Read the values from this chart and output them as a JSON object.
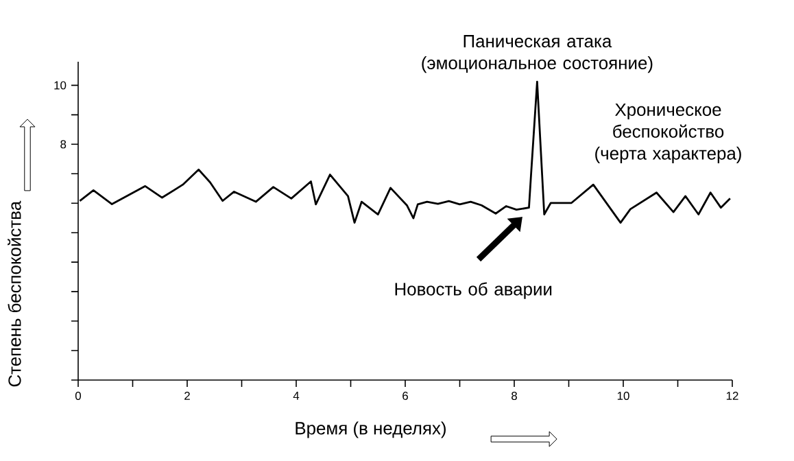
{
  "chart_data": {
    "type": "line",
    "xlabel": "Время (в неделях)",
    "ylabel": "Степень беспокойства",
    "xlim": [
      0,
      12
    ],
    "ylim": [
      0,
      10.8
    ],
    "xticks": [
      0,
      {
        "value": 1,
        "label": null
      },
      2,
      {
        "value": 3,
        "label": null
      },
      4,
      {
        "value": 5,
        "label": null
      },
      6,
      {
        "value": 7,
        "label": null
      },
      8,
      {
        "value": 9,
        "label": null
      },
      10,
      {
        "value": 11,
        "label": null
      },
      12
    ],
    "yticks": [
      {
        "value": 0,
        "label": null
      },
      {
        "value": 1,
        "label": null
      },
      {
        "value": 2,
        "label": null
      },
      {
        "value": 3,
        "label": null
      },
      {
        "value": 4,
        "label": null
      },
      {
        "value": 5,
        "label": null
      },
      {
        "value": 6,
        "label": null
      },
      {
        "value": 7,
        "label": null
      },
      8,
      {
        "value": 9,
        "label": null
      },
      10
    ],
    "annotations": [
      {
        "text": "Паническая атака (эмоциональное состояние)",
        "x": 8.42,
        "y": 10.12
      },
      "Хроническое беспокойство (черта характера)",
      "Новость об аварии"
    ],
    "series": [
      {
        "color": "#000000",
        "x": [
          0.03,
          0.28,
          0.62,
          1.23,
          1.54,
          1.92,
          2.21,
          2.42,
          2.65,
          2.86,
          3.26,
          3.58,
          3.91,
          4.27,
          4.36,
          4.62,
          4.95,
          5.07,
          5.2,
          5.5,
          5.73,
          6.03,
          6.15,
          6.23,
          6.4,
          6.6,
          6.8,
          7.0,
          7.2,
          7.4,
          7.66,
          7.85,
          8.04,
          8.27,
          8.31,
          8.42,
          8.55,
          8.67,
          9.05,
          9.45,
          9.95,
          10.13,
          10.61,
          10.92,
          11.14,
          11.38,
          11.6,
          11.79,
          11.96
        ],
        "values": [
          6.08,
          6.44,
          5.97,
          6.58,
          6.19,
          6.63,
          7.14,
          6.71,
          6.08,
          6.39,
          6.05,
          6.55,
          6.16,
          6.74,
          5.96,
          6.97,
          6.24,
          5.34,
          6.05,
          5.62,
          6.52,
          5.93,
          5.49,
          5.96,
          6.05,
          5.98,
          6.07,
          5.96,
          6.05,
          5.93,
          5.65,
          5.9,
          5.78,
          5.85,
          7.02,
          10.12,
          5.62,
          6.01,
          6.01,
          6.63,
          5.34,
          5.8,
          6.36,
          5.7,
          6.24,
          5.62,
          6.36,
          5.85,
          6.16
        ]
      }
    ]
  }
}
